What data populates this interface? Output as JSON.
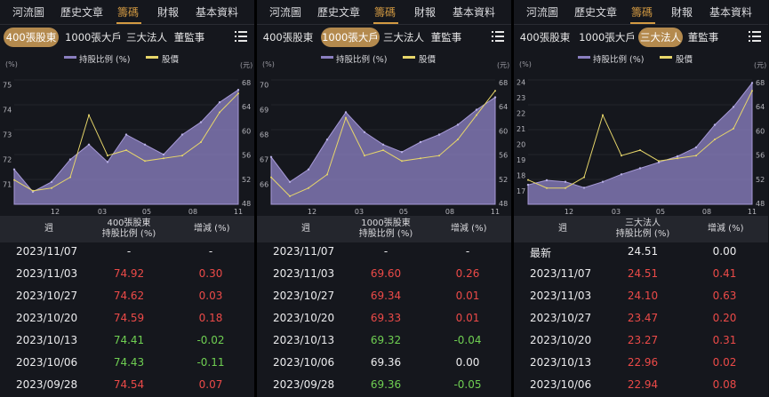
{
  "colors": {
    "holding": "#8a7fc0",
    "price": "#e7d66a",
    "accent": "#d39a42",
    "up": "#ec4a48",
    "down": "#6fcf52"
  },
  "panels": [
    {
      "nav": [
        "河流圖",
        "歷史文章",
        "籌碼",
        "財報",
        "基本資料"
      ],
      "active_nav": 2,
      "chips": [
        "400張股東",
        "1000張大戶",
        "三大法人",
        "董監事"
      ],
      "active_chip": 0,
      "legend": {
        "holding": "持股比例 (%)",
        "price": "股價"
      },
      "unit_left": "(%)",
      "unit_right": "(元)",
      "y_left_ticks": [
        "75",
        "74",
        "73",
        "72",
        "71"
      ],
      "y_right_ticks": [
        "68",
        "64",
        "60",
        "56",
        "52",
        "48"
      ],
      "x_ticks": [
        "12",
        "03",
        "05",
        "08",
        "11"
      ],
      "chart_data": {
        "type": "area",
        "x": [
          "2022-11",
          "2022-12",
          "2023-01",
          "2023-02",
          "2023-03",
          "2023-04",
          "2023-05",
          "2023-06",
          "2023-07",
          "2023-08",
          "2023-09",
          "2023-10",
          "2023-11"
        ],
        "ylim_left": [
          70.5,
          75.5
        ],
        "ylim_right": [
          47,
          70
        ],
        "series": [
          {
            "name": "持股比例 (%)",
            "axis": "left",
            "values": [
              71.9,
              71.0,
              71.4,
              72.3,
              72.9,
              72.2,
              73.3,
              72.9,
              72.5,
              73.3,
              73.8,
              74.6,
              75.1
            ]
          },
          {
            "name": "股價",
            "axis": "right",
            "values": [
              51.5,
              49.5,
              50.0,
              52.0,
              63.5,
              56.0,
              57.0,
              55.0,
              55.5,
              56.0,
              58.5,
              64.0,
              67.5
            ]
          }
        ]
      },
      "table": {
        "headers": [
          "週",
          "400張股東\n持股比例 (%)",
          "增減 (%)"
        ],
        "rows": [
          {
            "week": "2023/11/07",
            "value": "-",
            "change": "-",
            "vc": "white",
            "cc": "white"
          },
          {
            "week": "2023/11/03",
            "value": "74.92",
            "change": "0.30",
            "vc": "red",
            "cc": "red"
          },
          {
            "week": "2023/10/27",
            "value": "74.62",
            "change": "0.03",
            "vc": "red",
            "cc": "red"
          },
          {
            "week": "2023/10/20",
            "value": "74.59",
            "change": "0.18",
            "vc": "red",
            "cc": "red"
          },
          {
            "week": "2023/10/13",
            "value": "74.41",
            "change": "-0.02",
            "vc": "green",
            "cc": "green"
          },
          {
            "week": "2023/10/06",
            "value": "74.43",
            "change": "-0.11",
            "vc": "green",
            "cc": "green"
          },
          {
            "week": "2023/09/28",
            "value": "74.54",
            "change": "0.07",
            "vc": "red",
            "cc": "red"
          }
        ]
      }
    },
    {
      "nav": [
        "河流圖",
        "歷史文章",
        "籌碼",
        "財報",
        "基本資料"
      ],
      "active_nav": 2,
      "chips": [
        "400張股東",
        "1000張大戶",
        "三大法人",
        "董監事"
      ],
      "active_chip": 1,
      "legend": {
        "holding": "持股比例 (%)",
        "price": "股價"
      },
      "unit_left": "(%)",
      "unit_right": "(元)",
      "y_left_ticks": [
        "70",
        "69",
        "68",
        "67",
        "66"
      ],
      "y_right_ticks": [
        "68",
        "64",
        "60",
        "56",
        "52",
        "48"
      ],
      "x_ticks": [
        "12",
        "03",
        "05",
        "08",
        "11"
      ],
      "chart_data": {
        "type": "area",
        "x": [
          "2022-11",
          "2022-12",
          "2023-01",
          "2023-02",
          "2023-03",
          "2023-04",
          "2023-05",
          "2023-06",
          "2023-07",
          "2023-08",
          "2023-09",
          "2023-10",
          "2023-11"
        ],
        "ylim_left": [
          65.5,
          70.5
        ],
        "ylim_right": [
          47,
          70
        ],
        "series": [
          {
            "name": "持股比例 (%)",
            "axis": "left",
            "values": [
              67.4,
              66.4,
              66.9,
              68.1,
              69.2,
              68.4,
              67.9,
              67.6,
              68.0,
              68.3,
              68.7,
              69.3,
              69.8
            ]
          },
          {
            "name": "股價",
            "axis": "right",
            "values": [
              52.0,
              48.5,
              50.0,
              52.5,
              63.0,
              56.0,
              57.0,
              55.0,
              55.5,
              56.0,
              59.0,
              63.5,
              68.0
            ]
          }
        ]
      },
      "table": {
        "headers": [
          "週",
          "1000張股東\n持股比例 (%)",
          "增減 (%)"
        ],
        "rows": [
          {
            "week": "2023/11/07",
            "value": "-",
            "change": "-",
            "vc": "white",
            "cc": "white"
          },
          {
            "week": "2023/11/03",
            "value": "69.60",
            "change": "0.26",
            "vc": "red",
            "cc": "red"
          },
          {
            "week": "2023/10/27",
            "value": "69.34",
            "change": "0.01",
            "vc": "red",
            "cc": "red"
          },
          {
            "week": "2023/10/20",
            "value": "69.33",
            "change": "0.01",
            "vc": "red",
            "cc": "red"
          },
          {
            "week": "2023/10/13",
            "value": "69.32",
            "change": "-0.04",
            "vc": "green",
            "cc": "green"
          },
          {
            "week": "2023/10/06",
            "value": "69.36",
            "change": "0.00",
            "vc": "white",
            "cc": "white"
          },
          {
            "week": "2023/09/28",
            "value": "69.36",
            "change": "-0.05",
            "vc": "green",
            "cc": "green"
          }
        ]
      }
    },
    {
      "nav": [
        "河流圖",
        "歷史文章",
        "籌碼",
        "財報",
        "基本資料"
      ],
      "active_nav": 2,
      "chips": [
        "400張股東",
        "1000張大戶",
        "三大法人",
        "董監事"
      ],
      "active_chip": 2,
      "legend": {
        "holding": "持股比例 (%)",
        "price": "股價"
      },
      "unit_left": "(%)",
      "unit_right": "(元)",
      "y_left_ticks": [
        "24",
        "23",
        "22",
        "21",
        "20",
        "19",
        "18",
        "17"
      ],
      "y_right_ticks": [
        "68",
        "64",
        "60",
        "56",
        "52",
        "48"
      ],
      "x_ticks": [
        "12",
        "03",
        "05",
        "08",
        "11"
      ],
      "chart_data": {
        "type": "area",
        "x": [
          "2022-11",
          "2022-12",
          "2023-01",
          "2023-02",
          "2023-03",
          "2023-04",
          "2023-05",
          "2023-06",
          "2023-07",
          "2023-08",
          "2023-09",
          "2023-10",
          "2023-11"
        ],
        "ylim_left": [
          16.5,
          24.8
        ],
        "ylim_right": [
          47,
          70
        ],
        "series": [
          {
            "name": "持股比例 (%)",
            "axis": "left",
            "values": [
              17.8,
              18.1,
              18.0,
              17.6,
              18.0,
              18.5,
              18.9,
              19.3,
              19.7,
              20.3,
              21.8,
              23.0,
              24.6
            ]
          },
          {
            "name": "股價",
            "axis": "right",
            "values": [
              51.5,
              50.0,
              50.0,
              52.0,
              63.5,
              56.0,
              57.0,
              55.0,
              55.5,
              56.0,
              59.0,
              61.0,
              68.0
            ]
          }
        ]
      },
      "table": {
        "headers": [
          "週",
          "三大法人\n持股比例 (%)",
          "增減 (%)"
        ],
        "rows": [
          {
            "week": "最新",
            "value": "24.51",
            "change": "0.00",
            "vc": "white",
            "cc": "white"
          },
          {
            "week": "2023/11/07",
            "value": "24.51",
            "change": "0.41",
            "vc": "red",
            "cc": "red"
          },
          {
            "week": "2023/11/03",
            "value": "24.10",
            "change": "0.63",
            "vc": "red",
            "cc": "red"
          },
          {
            "week": "2023/10/27",
            "value": "23.47",
            "change": "0.20",
            "vc": "red",
            "cc": "red"
          },
          {
            "week": "2023/10/20",
            "value": "23.27",
            "change": "0.31",
            "vc": "red",
            "cc": "red"
          },
          {
            "week": "2023/10/13",
            "value": "22.96",
            "change": "0.02",
            "vc": "red",
            "cc": "red"
          },
          {
            "week": "2023/10/06",
            "value": "22.94",
            "change": "0.08",
            "vc": "red",
            "cc": "red"
          }
        ]
      }
    }
  ]
}
